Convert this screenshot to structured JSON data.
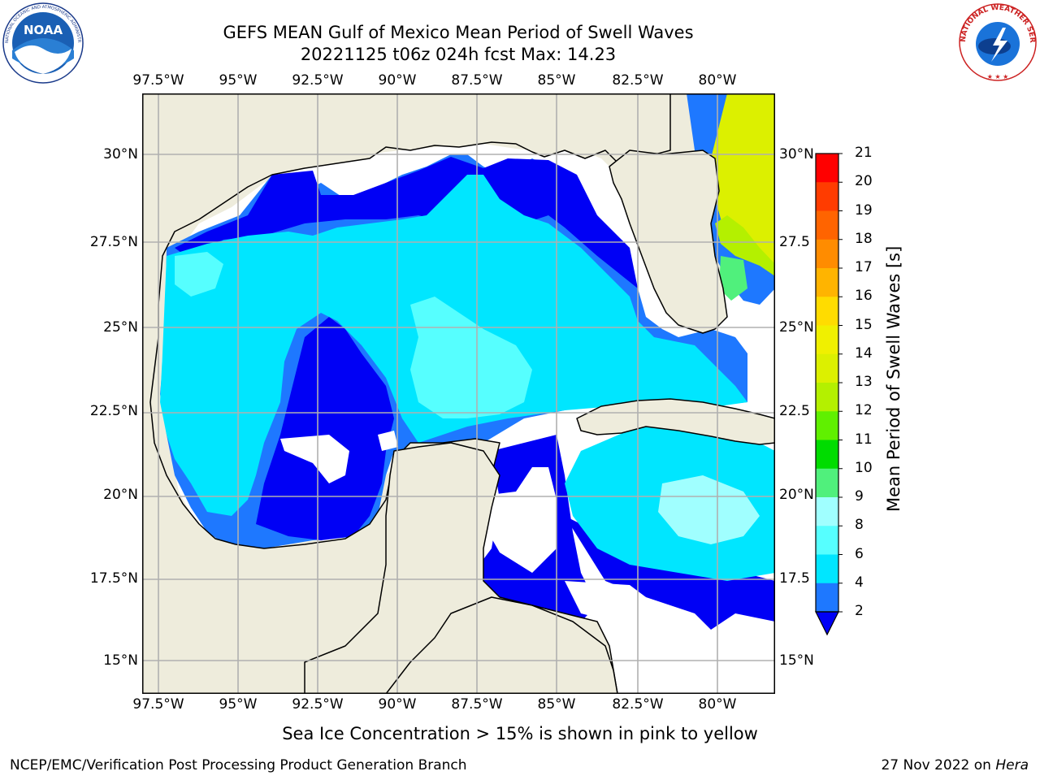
{
  "title": {
    "line1": "GEFS MEAN Gulf of Mexico Mean Period of Swell Waves",
    "line2": "20221125 t06z 024h fcst   Max: 14.23"
  },
  "map": {
    "lon_labels": [
      "97.5°W",
      "95°W",
      "92.5°W",
      "90°W",
      "87.5°W",
      "85°W",
      "82.5°W",
      "80°W"
    ],
    "lat_labels_left": [
      "30°N",
      "27.5°N",
      "25°N",
      "22.5°N",
      "20°N",
      "17.5°N",
      "15°N"
    ],
    "lat_labels_right": [
      "30°N",
      "27.5",
      "25°N",
      "22.5",
      "20°N",
      "17.5",
      "15°N"
    ],
    "extent": {
      "lon": [
        -98,
        -78.3
      ],
      "lat": [
        14,
        31.8
      ]
    },
    "land_color": "#eeecdc",
    "no_data_color": "#ffffff",
    "grid": true
  },
  "colorbar": {
    "label": "Mean Period of Swell Waves [s]",
    "ticks": [
      "2",
      "4",
      "6",
      "8",
      "9",
      "10",
      "11",
      "12",
      "13",
      "14",
      "15",
      "16",
      "17",
      "18",
      "19",
      "20",
      "21"
    ],
    "colors": [
      "#0000f5",
      "#1e78ff",
      "#00e6ff",
      "#56ffff",
      "#a0ffff",
      "#50f07c",
      "#00dc00",
      "#60f000",
      "#b4f000",
      "#dcf000",
      "#f0f000",
      "#ffdc00",
      "#ffb400",
      "#ff8c00",
      "#ff6400",
      "#ff3c00",
      "#ff0000"
    ],
    "extend": "min"
  },
  "chart_data": {
    "type": "heatmap",
    "title": "GEFS MEAN Gulf of Mexico Mean Period of Swell Waves",
    "subtitle": "20221125 t06z 024h fcst   Max: 14.23",
    "max_value": 14.23,
    "units": "s",
    "color_range": [
      2,
      21
    ],
    "lon_range": [
      -98,
      -78.3
    ],
    "lat_range": [
      14,
      31.8
    ]
  },
  "notes": {
    "sea_ice": "Sea Ice Concentration > 15% is shown in pink to yellow"
  },
  "footer": {
    "left": "NCEP/EMC/Verification Post Processing Product Generation Branch",
    "right_prefix": "27 Nov 2022 on ",
    "right_host": "Hera"
  },
  "logos": {
    "noaa": "NOAA",
    "noaa_ring": "NATIONAL OCEANIC AND ATMOSPHERIC ADMINISTRATION · U.S. DEPARTMENT OF COMMERCE",
    "nws": "NATIONAL WEATHER SERVICE"
  }
}
